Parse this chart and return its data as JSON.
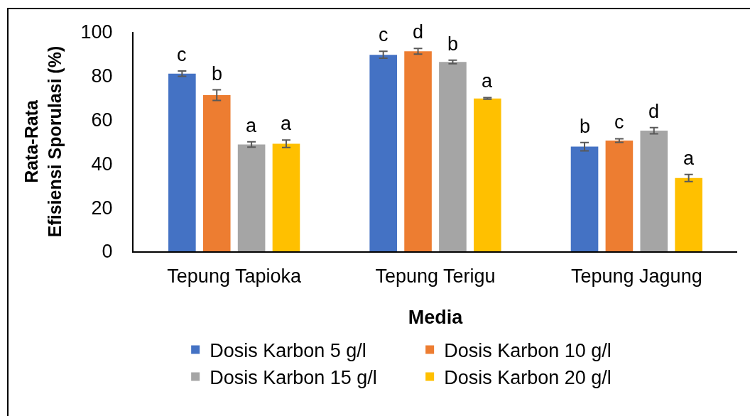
{
  "chart_data": {
    "type": "bar",
    "xlabel": "Media",
    "ylabel": "Rata-Rata\nEfisiensi Sporulasi (%)",
    "categories": [
      "Tepung Tapioka",
      "Tepung Terigu",
      "Tepung Jagung"
    ],
    "ylim": [
      0,
      100
    ],
    "yticks": [
      0,
      20,
      40,
      60,
      80,
      100
    ],
    "legend": "bottom",
    "series": [
      {
        "name": "Dosis Karbon 5 g/l",
        "color": "#4472c4",
        "values": [
          81,
          89.6,
          47.7
        ],
        "errors": [
          1.2,
          1.6,
          1.9
        ],
        "value_labels": [
          "c",
          "c",
          "b"
        ]
      },
      {
        "name": "Dosis Karbon 10 g/l",
        "color": "#ed7d31",
        "values": [
          71.2,
          91.2,
          50.5
        ],
        "errors": [
          2.4,
          1.3,
          0.8
        ],
        "value_labels": [
          "b",
          "d",
          "c"
        ]
      },
      {
        "name": "Dosis Karbon 15 g/l",
        "color": "#a5a5a5",
        "values": [
          48.7,
          86.3,
          55
        ],
        "errors": [
          1.2,
          0.8,
          1.4
        ],
        "value_labels": [
          "a",
          "b",
          "d"
        ]
      },
      {
        "name": "Dosis Karbon 20 g/l",
        "color": "#ffc000",
        "values": [
          49,
          69.7,
          33.4
        ],
        "errors": [
          1.7,
          0.4,
          1.6
        ],
        "value_labels": [
          "a",
          "a",
          "a"
        ]
      }
    ]
  }
}
